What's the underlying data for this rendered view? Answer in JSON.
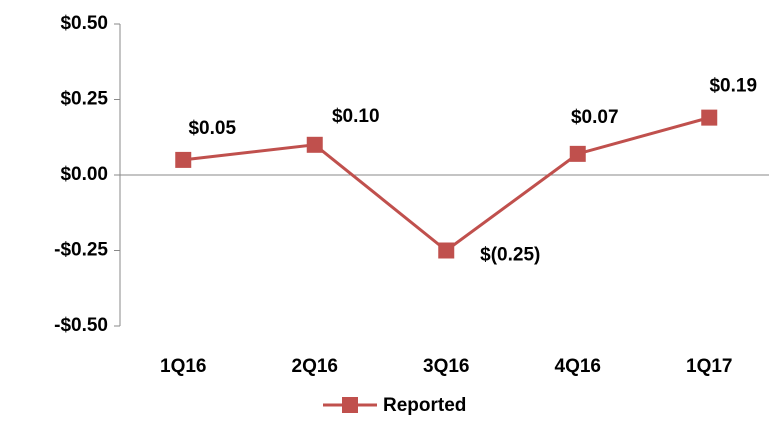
{
  "chart_data": {
    "type": "line",
    "categories": [
      "1Q16",
      "2Q16",
      "3Q16",
      "4Q16",
      "1Q17"
    ],
    "series": [
      {
        "name": "Reported",
        "color": "#c0504d",
        "values": [
          0.05,
          0.1,
          -0.25,
          0.07,
          0.19
        ],
        "value_labels": [
          "$0.05",
          "$0.10",
          "$(0.25)",
          "$0.07",
          "$0.19"
        ]
      }
    ],
    "ylim": [
      -0.5,
      0.5
    ],
    "yticks": [
      {
        "value": -0.5,
        "label": "-$0.50"
      },
      {
        "value": -0.25,
        "label": "-$0.25"
      },
      {
        "value": 0,
        "label": "$0.00"
      },
      {
        "value": 0.25,
        "label": "$0.25"
      },
      {
        "value": 0.5,
        "label": "$0.50"
      }
    ],
    "legend": "bottom"
  }
}
